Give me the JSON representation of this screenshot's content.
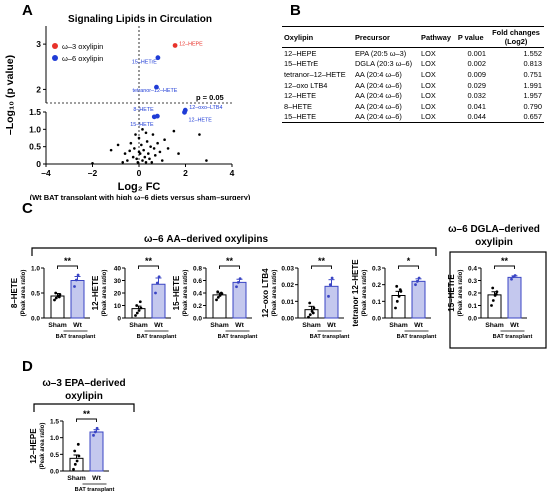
{
  "panels": {
    "a": "A",
    "b": "B",
    "c": "C",
    "d": "D"
  },
  "colors": {
    "omega3": "#e8322a",
    "omega6": "#1f3cd6",
    "bar_fill": "#c4c8ee",
    "bar_edge": "#3a45c4",
    "threshold": "#000000"
  },
  "panelA": {
    "caption": "(Wt BAT transplant with high ω–6 diets versus sham–surgery)",
    "chart_data": {
      "type": "scatter",
      "title": "Signaling Lipids in Circulation",
      "xlabel": "Log₂ FC",
      "ylabel": "–Log₁₀ (p value)",
      "xlim": [
        -4,
        4
      ],
      "ylim": [
        0,
        3.4
      ],
      "y_axis_break": [
        1.5,
        1.7
      ],
      "xticks": [
        "–4",
        "–2",
        "0",
        "2",
        "4"
      ],
      "yticks": [
        "0",
        "0.5",
        "1.0",
        "1.5",
        "2",
        "3"
      ],
      "threshold_label": "p = 0.05",
      "threshold_y": 1.301,
      "legend": [
        "ω–3 oxylipin",
        "ω–6 oxylipin"
      ],
      "highlighted": [
        {
          "label": "12–HEPE",
          "x": 1.552,
          "y": 2.97,
          "class": "omega3"
        },
        {
          "label": "15–HETrE",
          "x": 0.813,
          "y": 2.7,
          "class": "omega6"
        },
        {
          "label": "tetranor–12–HETE",
          "x": 0.751,
          "y": 2.05,
          "class": "omega6"
        },
        {
          "label": "12–oxo–LTB4",
          "x": 1.991,
          "y": 1.54,
          "class": "omega6"
        },
        {
          "label": "8–HETE",
          "x": 0.79,
          "y": 1.38,
          "class": "omega6"
        },
        {
          "label": "12–HETE",
          "x": 1.957,
          "y": 1.49,
          "class": "omega6"
        },
        {
          "label": "15–HETE",
          "x": 0.657,
          "y": 1.36,
          "class": "omega6"
        }
      ],
      "background_points": [
        [
          -2.0,
          0.02
        ],
        [
          -1.2,
          0.4
        ],
        [
          -0.9,
          0.55
        ],
        [
          -0.6,
          0.3
        ],
        [
          -0.5,
          0.1
        ],
        [
          -0.35,
          0.6
        ],
        [
          -0.25,
          0.2
        ],
        [
          -0.2,
          0.45
        ],
        [
          -0.1,
          0.15
        ],
        [
          -0.05,
          0.05
        ],
        [
          0.0,
          0.75
        ],
        [
          0.05,
          0.3
        ],
        [
          0.1,
          0.55
        ],
        [
          0.15,
          0.1
        ],
        [
          0.2,
          0.4
        ],
        [
          0.25,
          0.2
        ],
        [
          0.3,
          0.05
        ],
        [
          0.35,
          0.65
        ],
        [
          0.4,
          0.3
        ],
        [
          0.45,
          0.15
        ],
        [
          0.5,
          0.5
        ],
        [
          0.55,
          0.05
        ],
        [
          0.6,
          0.85
        ],
        [
          0.7,
          0.25
        ],
        [
          0.8,
          0.6
        ],
        [
          0.9,
          0.35
        ],
        [
          1.0,
          0.1
        ],
        [
          1.1,
          0.7
        ],
        [
          1.25,
          0.45
        ],
        [
          1.5,
          0.95
        ],
        [
          1.7,
          0.3
        ],
        [
          2.6,
          0.85
        ],
        [
          2.9,
          0.1
        ],
        [
          0.15,
          1.0
        ],
        [
          -0.15,
          0.85
        ],
        [
          0.3,
          0.9
        ],
        [
          -0.4,
          0.38
        ],
        [
          0.65,
          0.45
        ],
        [
          -0.7,
          0.05
        ],
        [
          0.0,
          0.35
        ]
      ]
    }
  },
  "panelB": {
    "headers": [
      "Oxylipin",
      "Precursor",
      "Pathway",
      "P value",
      "Fold changes (Log2)"
    ],
    "rows": [
      [
        "12–HEPE",
        "EPA (20:5 ω–3)",
        "LOX",
        "0.001",
        "1.552"
      ],
      [
        "15–HETrE",
        "DGLA (20:3 ω–6)",
        "LOX",
        "0.002",
        "0.813"
      ],
      [
        "tetranor–12–HETE",
        "AA (20:4 ω–6)",
        "LOX",
        "0.009",
        "0.751"
      ],
      [
        "12–oxo LTB4",
        "AA (20:4 ω–6)",
        "LOX",
        "0.029",
        "1.991"
      ],
      [
        "12–HETE",
        "AA (20:4 ω–6)",
        "LOX",
        "0.032",
        "1.957"
      ],
      [
        "8–HETE",
        "AA (20:4 ω–6)",
        "LOX",
        "0.041",
        "0.790"
      ],
      [
        "15–HETE",
        "AA (20:4 ω–6)",
        "LOX",
        "0.044",
        "0.657"
      ]
    ]
  },
  "panelC": {
    "group1_title": "ω–6 AA–derived oxylipins",
    "group2_title_line1": "ω–6 DGLA–derived",
    "group2_title_line2": "oxylipin",
    "ylabel_unit": "(Peak area ratio)",
    "xlabel": "BAT transplant",
    "categories": [
      "Sham",
      "Wt"
    ]
  },
  "panelD": {
    "title_line1": "ω–3 EPA–derived",
    "title_line2": "oxylipin",
    "ylabel_unit": "(Peak area ratio)",
    "xlabel": "BAT transplant",
    "categories": [
      "Sham",
      "Wt"
    ]
  },
  "chart_data": [
    {
      "type": "bar",
      "name": "8–HETE",
      "ylabel": "8–HETE",
      "categories": [
        "Sham",
        "Wt"
      ],
      "values": [
        0.44,
        0.75
      ],
      "errors": [
        0.05,
        0.08
      ],
      "ylim": [
        0,
        1.0
      ],
      "yticks": [
        "0.0",
        "0.5",
        "1.0"
      ],
      "significance": "**",
      "points": [
        [
          0.36,
          0.4,
          0.44,
          0.47,
          0.5,
          0.42
        ],
        [
          0.63,
          0.76,
          0.86
        ]
      ]
    },
    {
      "type": "bar",
      "name": "12–HETE",
      "ylabel": "12–HETE",
      "categories": [
        "Sham",
        "Wt"
      ],
      "values": [
        7.5,
        27
      ],
      "errors": [
        2,
        5
      ],
      "ylim": [
        0,
        40
      ],
      "yticks": [
        "0",
        "10",
        "20",
        "30",
        "40"
      ],
      "significance": "**",
      "points": [
        [
          2,
          4,
          6,
          8,
          10,
          13
        ],
        [
          20,
          28,
          33
        ]
      ]
    },
    {
      "type": "bar",
      "name": "15–HETE",
      "ylabel": "15–HETE",
      "categories": [
        "Sham",
        "Wt"
      ],
      "values": [
        0.37,
        0.57
      ],
      "errors": [
        0.03,
        0.05
      ],
      "ylim": [
        0,
        0.8
      ],
      "yticks": [
        "0.0",
        "0.2",
        "0.4",
        "0.6",
        "0.8"
      ],
      "significance": "**",
      "points": [
        [
          0.29,
          0.33,
          0.36,
          0.39,
          0.42,
          0.4
        ],
        [
          0.5,
          0.57,
          0.63
        ]
      ]
    },
    {
      "type": "bar",
      "name": "12–oxo LTB4",
      "ylabel": "12–oxo LTB4",
      "categories": [
        "Sham",
        "Wt"
      ],
      "values": [
        0.005,
        0.019
      ],
      "errors": [
        0.002,
        0.004
      ],
      "ylim": [
        0,
        0.03
      ],
      "yticks": [
        "0.00",
        "0.01",
        "0.02",
        "0.03"
      ],
      "significance": "**",
      "points": [
        [
          0.0005,
          0.002,
          0.004,
          0.006,
          0.009,
          0.003
        ],
        [
          0.013,
          0.02,
          0.024
        ]
      ]
    },
    {
      "type": "bar",
      "name": "tetranor 12–HETE",
      "ylabel": "tetranor 12–HETE",
      "categories": [
        "Sham",
        "Wt"
      ],
      "values": [
        0.135,
        0.22
      ],
      "errors": [
        0.025,
        0.015
      ],
      "ylim": [
        0,
        0.3
      ],
      "yticks": [
        "0.0",
        "0.1",
        "0.2",
        "0.3"
      ],
      "significance": "*",
      "points": [
        [
          0.06,
          0.1,
          0.13,
          0.16,
          0.19,
          0.17
        ],
        [
          0.2,
          0.22,
          0.24
        ]
      ]
    },
    {
      "type": "bar",
      "name": "15–HETrE",
      "ylabel": "15–HETrE",
      "categories": [
        "Sham",
        "Wt"
      ],
      "values": [
        0.185,
        0.325
      ],
      "errors": [
        0.025,
        0.012
      ],
      "ylim": [
        0,
        0.4
      ],
      "yticks": [
        "0.0",
        "0.1",
        "0.2",
        "0.3",
        "0.4"
      ],
      "significance": "**",
      "points": [
        [
          0.1,
          0.14,
          0.18,
          0.21,
          0.24,
          0.19
        ],
        [
          0.31,
          0.33,
          0.34
        ]
      ]
    },
    {
      "type": "bar",
      "name": "12–HEPE",
      "ylabel": "12–HEPE",
      "categories": [
        "Sham",
        "Wt"
      ],
      "values": [
        0.38,
        1.17
      ],
      "errors": [
        0.1,
        0.07
      ],
      "ylim": [
        0,
        1.5
      ],
      "yticks": [
        "0.0",
        "0.5",
        "1.0",
        "1.5"
      ],
      "significance": "**",
      "points": [
        [
          0.05,
          0.2,
          0.3,
          0.45,
          0.6,
          0.8
        ],
        [
          1.07,
          1.17,
          1.28
        ]
      ]
    }
  ]
}
